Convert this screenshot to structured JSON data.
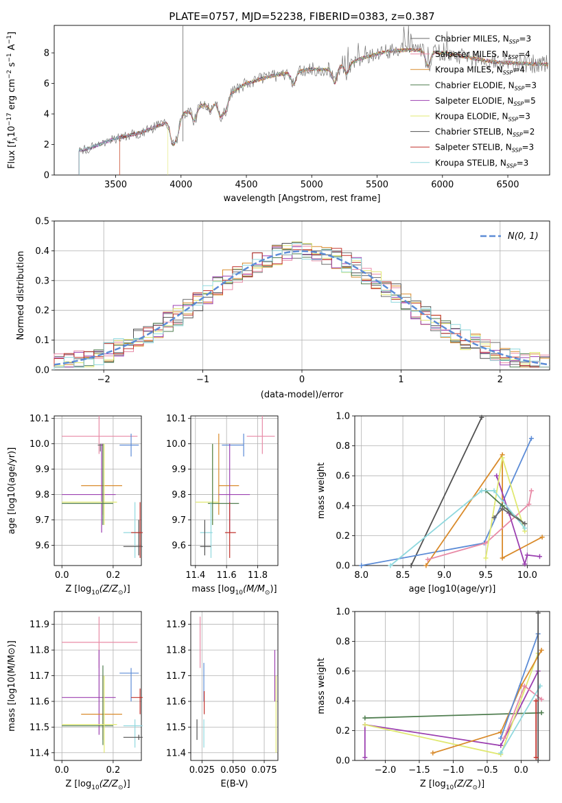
{
  "title": "PLATE=0757, MJD=52238, FIBERID=0383, z=0.387",
  "colors": [
    "#6a6a6a",
    "#e88aa6",
    "#d98a2a",
    "#4f7d4f",
    "#9b3fb0",
    "#e0e870",
    "#505050",
    "#c0302a",
    "#8fd8de"
  ],
  "legend": [
    {
      "base": "Chabrier MILES, N",
      "n": "3"
    },
    {
      "base": "Salpeter MILES, N",
      "n": "4"
    },
    {
      "base": "Kroupa MILES, N",
      "n": "4"
    },
    {
      "base": "Chabrier ELODIE, N",
      "n": "3"
    },
    {
      "base": "Salpeter ELODIE, N",
      "n": "5"
    },
    {
      "base": "Kroupa ELODIE, N",
      "n": "3"
    },
    {
      "base": "Chabrier STELIB, N",
      "n": "2"
    },
    {
      "base": "Salpeter STELIB, N",
      "n": "3"
    },
    {
      "base": "Kroupa STELIB, N",
      "n": "3"
    }
  ],
  "legend_sub": "SSP",
  "chart_data": [
    {
      "type": "line",
      "xlabel": "wavelength [Angstrom, rest frame]",
      "ylabel": "Flux [f",
      "ylabel_sub": "λ",
      "ylabel_mid": "10",
      "ylabel_sup1": "−17",
      "ylabel_rest": " erg cm",
      "ylabel_sup2": "−2",
      "ylabel_rest2": " s",
      "ylabel_sup3": "−1",
      "ylabel_rest3": " A",
      "ylabel_sup4": "−1",
      "ylabel_end": "]",
      "xlim": [
        3030,
        6820
      ],
      "ylim": [
        0,
        9.8
      ],
      "xticks": [
        "3500",
        "4000",
        "4500",
        "5000",
        "5500",
        "6000",
        "6500"
      ],
      "yticks": [
        "0",
        "2",
        "4",
        "6",
        "8"
      ],
      "continuum": [
        [
          3220,
          1.6
        ],
        [
          3300,
          1.75
        ],
        [
          3500,
          2.4
        ],
        [
          3700,
          2.8
        ],
        [
          3850,
          3.3
        ],
        [
          4000,
          3.9
        ],
        [
          4100,
          4.4
        ],
        [
          4300,
          4.9
        ],
        [
          4500,
          6.0
        ],
        [
          4700,
          6.5
        ],
        [
          4900,
          6.8
        ],
        [
          5000,
          6.95
        ],
        [
          5100,
          6.9
        ],
        [
          5250,
          7.2
        ],
        [
          5400,
          7.7
        ],
        [
          5600,
          8.15
        ],
        [
          5800,
          8.2
        ],
        [
          6000,
          8.0
        ],
        [
          6200,
          7.7
        ],
        [
          6400,
          7.4
        ],
        [
          6600,
          7.3
        ],
        [
          6800,
          7.25
        ]
      ],
      "absorption": [
        [
          3934,
          1.4
        ],
        [
          3969,
          1.2
        ],
        [
          4102,
          0.8
        ],
        [
          4226,
          0.5
        ],
        [
          4300,
          1.0
        ],
        [
          4340,
          0.9
        ],
        [
          4861,
          0.8
        ],
        [
          5175,
          1.0
        ],
        [
          5270,
          0.6
        ],
        [
          5890,
          1.0
        ]
      ],
      "starts": [
        3220,
        3220,
        3530,
        3220,
        3220,
        3900,
        3220,
        3530,
        3220
      ],
      "grid": false,
      "legend_placement": "right"
    },
    {
      "type": "step-histogram",
      "xlabel": "(data-model)/error",
      "ylabel": "Normed distribution",
      "xlim": [
        -2.5,
        2.5
      ],
      "ylim": [
        0,
        0.5
      ],
      "xticks": [
        "−2",
        "−1",
        "0",
        "1",
        "2"
      ],
      "yticks": [
        "0.0",
        "0.1",
        "0.2",
        "0.3",
        "0.4",
        "0.5"
      ],
      "gauss_label": "N(0, 1)",
      "gauss_color": "#5b8bd6",
      "grid": true
    },
    {
      "type": "error-crosses",
      "xlabel": "Z [log",
      "xlabel_sub": "10",
      "xlabel_rest": "(Z/Z",
      "xlabel_sun": "⊙",
      "xlabel_end": ")]",
      "ylabel": "age  [log10(age/yr)]",
      "xlim": [
        -0.03,
        0.31
      ],
      "ylim": [
        9.52,
        10.11
      ],
      "xticks": [
        "0.0",
        "0.2"
      ],
      "yticks": [
        "9.6",
        "9.7",
        "9.8",
        "9.9",
        "10.0",
        "10.1"
      ],
      "points": [
        {
          "c": "#e88aa6",
          "x": 0.145,
          "y": 10.03,
          "xe": [
            0.0,
            0.295
          ],
          "ye": [
            9.96,
            10.11
          ]
        },
        {
          "c": "#5b8bd6",
          "x": 0.27,
          "y": 9.995,
          "xe": [
            0.225,
            0.3
          ],
          "ye": [
            9.95,
            10.04
          ]
        },
        {
          "c": "#6a6a6a",
          "x": 0.15,
          "y": 9.995,
          "xe": [
            0.14,
            0.16
          ],
          "ye": [
            9.97,
            10.0
          ]
        },
        {
          "c": "#d98a2a",
          "x": 0.16,
          "y": 9.835,
          "xe": [
            0.075,
            0.235
          ],
          "ye": [
            9.72,
            10.0
          ]
        },
        {
          "c": "#9b3fb0",
          "x": 0.155,
          "y": 9.8,
          "xe": [
            0.0,
            0.21
          ],
          "ye": [
            9.65,
            10.0
          ]
        },
        {
          "c": "#e0e870",
          "x": 0.165,
          "y": 9.77,
          "xe": [
            0.0,
            0.215
          ],
          "ye": [
            9.68,
            10.0
          ]
        },
        {
          "c": "#4f7d4f",
          "x": 0.16,
          "y": 9.765,
          "xe": [
            0.0,
            0.2
          ],
          "ye": [
            9.68,
            10.0
          ]
        },
        {
          "c": "#8fd8de",
          "x": 0.285,
          "y": 9.65,
          "xe": [
            0.24,
            0.315
          ],
          "ye": [
            9.55,
            9.77
          ]
        },
        {
          "c": "#505050",
          "x": 0.3,
          "y": 9.595,
          "xe": [
            0.24,
            0.315
          ],
          "ye": [
            9.56,
            9.7
          ]
        },
        {
          "c": "#c0302a",
          "x": 0.305,
          "y": 9.65,
          "xe": [
            0.27,
            0.315
          ],
          "ye": [
            9.55,
            9.77
          ]
        }
      ]
    },
    {
      "type": "error-crosses",
      "xlabel": "mass [log",
      "xlabel_sub": "10",
      "xlabel_rest": "(M/M",
      "xlabel_sun": "⊙",
      "xlabel_end": ")]",
      "ylabel": "",
      "xlim": [
        11.37,
        11.93
      ],
      "ylim": [
        9.52,
        10.11
      ],
      "xticks": [
        "11.4",
        "11.6",
        "11.8"
      ],
      "yticks": [
        "9.6",
        "9.7",
        "9.8",
        "9.9",
        "10.0",
        "10.1"
      ],
      "points": [
        {
          "c": "#e88aa6",
          "x": 11.83,
          "y": 10.03,
          "xe": [
            11.73,
            11.91
          ],
          "ye": [
            9.96,
            10.11
          ]
        },
        {
          "c": "#5b8bd6",
          "x": 11.71,
          "y": 9.995,
          "xe": [
            11.57,
            11.71
          ],
          "ye": [
            9.95,
            10.04
          ]
        },
        {
          "c": "#d98a2a",
          "x": 11.55,
          "y": 9.835,
          "xe": [
            11.55,
            11.68
          ],
          "ye": [
            9.72,
            10.04
          ]
        },
        {
          "c": "#9b3fb0",
          "x": 11.62,
          "y": 9.8,
          "xe": [
            11.55,
            11.75
          ],
          "ye": [
            9.65,
            10.0
          ]
        },
        {
          "c": "#e0e870",
          "x": 11.51,
          "y": 9.77,
          "xe": [
            11.4,
            11.55
          ],
          "ye": [
            9.68,
            10.0
          ]
        },
        {
          "c": "#4f7d4f",
          "x": 11.51,
          "y": 9.765,
          "xe": [
            11.48,
            11.68
          ],
          "ye": [
            9.68,
            10.0
          ]
        },
        {
          "c": "#8fd8de",
          "x": 11.5,
          "y": 9.65,
          "xe": [
            11.43,
            11.51
          ],
          "ye": [
            9.55,
            9.77
          ]
        },
        {
          "c": "#505050",
          "x": 11.46,
          "y": 9.595,
          "xe": [
            11.43,
            11.5
          ],
          "ye": [
            9.56,
            9.7
          ]
        },
        {
          "c": "#c0302a",
          "x": 11.62,
          "y": 9.65,
          "xe": [
            11.59,
            11.66
          ],
          "ye": [
            9.55,
            9.77
          ]
        }
      ]
    },
    {
      "type": "line",
      "xlabel": "age  [log10(age/yr)]",
      "ylabel": "mass weight",
      "xlim": [
        7.92,
        10.27
      ],
      "ylim": [
        0,
        1
      ],
      "xticks": [
        "8.0",
        "8.5",
        "9.0",
        "9.5",
        "10.0"
      ],
      "yticks": [
        "0.0",
        "0.2",
        "0.4",
        "0.6",
        "0.8",
        "1.0"
      ],
      "grid": true,
      "series": [
        {
          "c": "#505050",
          "pts": [
            [
              8.6,
              0
            ],
            [
              9.45,
              0.99
            ]
          ]
        },
        {
          "c": "#5b8bd6",
          "pts": [
            [
              8.0,
              0
            ],
            [
              9.48,
              0.15
            ],
            [
              10.05,
              0.85
            ]
          ]
        },
        {
          "c": "#d98a2a",
          "pts": [
            [
              8.78,
              0
            ],
            [
              9.7,
              0.74
            ],
            [
              9.7,
              0.05
            ],
            [
              10.18,
              0.19
            ]
          ]
        },
        {
          "c": "#e88aa6",
          "pts": [
            [
              8.8,
              0.04
            ],
            [
              9.5,
              0.15
            ],
            [
              10.02,
              0.41
            ],
            [
              10.05,
              0.5
            ]
          ]
        },
        {
          "c": "#9b3fb0",
          "pts": [
            [
              9.63,
              0.6
            ],
            [
              9.78,
              0.35
            ],
            [
              9.97,
              0.01
            ],
            [
              10.0,
              0.07
            ],
            [
              10.15,
              0.06
            ]
          ]
        },
        {
          "c": "#e0e870",
          "pts": [
            [
              9.5,
              0.05
            ],
            [
              9.7,
              0.72
            ],
            [
              9.97,
              0.23
            ]
          ]
        },
        {
          "c": "#4f7d4f",
          "pts": [
            [
              9.5,
              0.5
            ],
            [
              9.7,
              0.4
            ],
            [
              9.97,
              0.28
            ]
          ]
        },
        {
          "c": "#8fd8de",
          "pts": [
            [
              8.35,
              0
            ],
            [
              9.45,
              0.5
            ],
            [
              9.6,
              0.5
            ],
            [
              9.97,
              0.25
            ]
          ]
        },
        {
          "c": "#6a6a6a",
          "pts": [
            [
              9.6,
              0.32
            ],
            [
              9.7,
              0.38
            ],
            [
              9.97,
              0.28
            ]
          ]
        }
      ]
    },
    {
      "type": "error-crosses",
      "xlabel": "Z [log",
      "xlabel_sub": "10",
      "xlabel_rest": "(Z/Z",
      "xlabel_sun": "⊙",
      "xlabel_end": ")]",
      "ylabel": "mass [log10(M/M⊙)]",
      "xlim": [
        -0.03,
        0.31
      ],
      "ylim": [
        11.37,
        11.95
      ],
      "xticks": [
        "0.0",
        "0.2"
      ],
      "yticks": [
        "11.4",
        "11.5",
        "11.6",
        "11.7",
        "11.8",
        "11.9"
      ],
      "points": [
        {
          "c": "#e88aa6",
          "x": 0.145,
          "y": 11.83,
          "xe": [
            0.0,
            0.295
          ],
          "ye": [
            11.73,
            11.93
          ]
        },
        {
          "c": "#9b3fb0",
          "x": 0.145,
          "y": 11.615,
          "xe": [
            0.0,
            0.21
          ],
          "ye": [
            11.47,
            11.8
          ]
        },
        {
          "c": "#5b8bd6",
          "x": 0.27,
          "y": 11.71,
          "xe": [
            0.225,
            0.3
          ],
          "ye": [
            11.6,
            11.73
          ]
        },
        {
          "c": "#d98a2a",
          "x": 0.16,
          "y": 11.55,
          "xe": [
            0.075,
            0.235
          ],
          "ye": [
            11.45,
            11.7
          ]
        },
        {
          "c": "#4f7d4f",
          "x": 0.16,
          "y": 11.505,
          "xe": [
            0.0,
            0.2
          ],
          "ye": [
            11.43,
            11.74
          ]
        },
        {
          "c": "#e0e870",
          "x": 0.165,
          "y": 11.51,
          "xe": [
            0.0,
            0.215
          ],
          "ye": [
            11.4,
            11.7
          ]
        },
        {
          "c": "#8fd8de",
          "x": 0.285,
          "y": 11.505,
          "xe": [
            0.24,
            0.315
          ],
          "ye": [
            11.42,
            11.53
          ]
        },
        {
          "c": "#505050",
          "x": 0.3,
          "y": 11.46,
          "xe": [
            0.24,
            0.315
          ],
          "ye": [
            11.45,
            11.47
          ]
        },
        {
          "c": "#c0302a",
          "x": 0.305,
          "y": 11.615,
          "xe": [
            0.27,
            0.315
          ],
          "ye": [
            11.55,
            11.65
          ]
        }
      ]
    },
    {
      "type": "error-crosses",
      "xlabel": "E(B-V)",
      "ylabel": "",
      "xlim": [
        0.016,
        0.086
      ],
      "ylim": [
        11.37,
        11.95
      ],
      "xticks": [
        "0.025",
        "0.050",
        "0.075"
      ],
      "yticks": [
        "11.4",
        "11.5",
        "11.6",
        "11.7",
        "11.8",
        "11.9"
      ],
      "points": [
        {
          "c": "#e88aa6",
          "x": 0.0235,
          "y": 11.83,
          "xe": [
            0.0235,
            0.0235
          ],
          "ye": [
            11.73,
            11.93
          ]
        },
        {
          "c": "#5b8bd6",
          "x": 0.0265,
          "y": 11.71,
          "xe": [
            0.0265,
            0.0265
          ],
          "ye": [
            11.6,
            11.75
          ]
        },
        {
          "c": "#c0302a",
          "x": 0.0268,
          "y": 11.6,
          "xe": [
            0.0268,
            0.0268
          ],
          "ye": [
            11.55,
            11.64
          ]
        },
        {
          "c": "#8fd8de",
          "x": 0.0265,
          "y": 11.5,
          "xe": [
            0.0265,
            0.0265
          ],
          "ye": [
            11.42,
            11.53
          ]
        },
        {
          "c": "#505050",
          "x": 0.021,
          "y": 11.5,
          "xe": [
            0.021,
            0.021
          ],
          "ye": [
            11.45,
            11.53
          ]
        },
        {
          "c": "#9b3fb0",
          "x": 0.0835,
          "y": 11.7,
          "xe": [
            0.0835,
            0.0835
          ],
          "ye": [
            11.6,
            11.8
          ]
        },
        {
          "c": "#e0e870",
          "x": 0.0845,
          "y": 11.55,
          "xe": [
            0.0845,
            0.0845
          ],
          "ye": [
            11.4,
            11.7
          ]
        }
      ]
    },
    {
      "type": "line",
      "xlabel": "Z [log",
      "xlabel_sub": "10",
      "xlabel_rest": "(Z/Z",
      "xlabel_sun": "⊙",
      "xlabel_end": ")]",
      "ylabel": "mass weight",
      "xlim": [
        -2.45,
        0.42
      ],
      "ylim": [
        0,
        1
      ],
      "xticks": [
        "−2.0",
        "−1.5",
        "−1.0",
        "−0.5",
        "0.0"
      ],
      "yticks": [
        "0.0",
        "0.2",
        "0.4",
        "0.6",
        "0.8",
        "1.0"
      ],
      "grid": true,
      "series": [
        {
          "c": "#4f7d4f",
          "pts": [
            [
              -2.3,
              0.285
            ],
            [
              0.3,
              0.32
            ]
          ]
        },
        {
          "c": "#9b3fb0",
          "pts": [
            [
              -2.3,
              0.02
            ],
            [
              -2.3,
              0.24
            ],
            [
              -0.3,
              0.1
            ],
            [
              0.25,
              0.6
            ]
          ]
        },
        {
          "c": "#e0e870",
          "pts": [
            [
              -2.3,
              0.24
            ],
            [
              -0.3,
              0.04
            ],
            [
              0.25,
              0.72
            ]
          ]
        },
        {
          "c": "#d98a2a",
          "pts": [
            [
              -1.3,
              0.05
            ],
            [
              -0.3,
              0.19
            ],
            [
              0.0,
              0.5
            ],
            [
              0.3,
              0.74
            ]
          ]
        },
        {
          "c": "#5b8bd6",
          "pts": [
            [
              -0.3,
              0.15
            ],
            [
              0.25,
              0.85
            ]
          ]
        },
        {
          "c": "#e88aa6",
          "pts": [
            [
              -0.25,
              0.15
            ],
            [
              0.05,
              0.5
            ],
            [
              0.3,
              0.41
            ]
          ]
        },
        {
          "c": "#8fd8de",
          "pts": [
            [
              -0.3,
              0.05
            ],
            [
              0.28,
              0.5
            ]
          ]
        },
        {
          "c": "#505050",
          "pts": [
            [
              0.25,
              0.0
            ],
            [
              0.25,
              0.99
            ]
          ]
        },
        {
          "c": "#c0302a",
          "pts": [
            [
              0.22,
              0.02
            ],
            [
              0.22,
              0.4
            ]
          ]
        }
      ]
    }
  ]
}
